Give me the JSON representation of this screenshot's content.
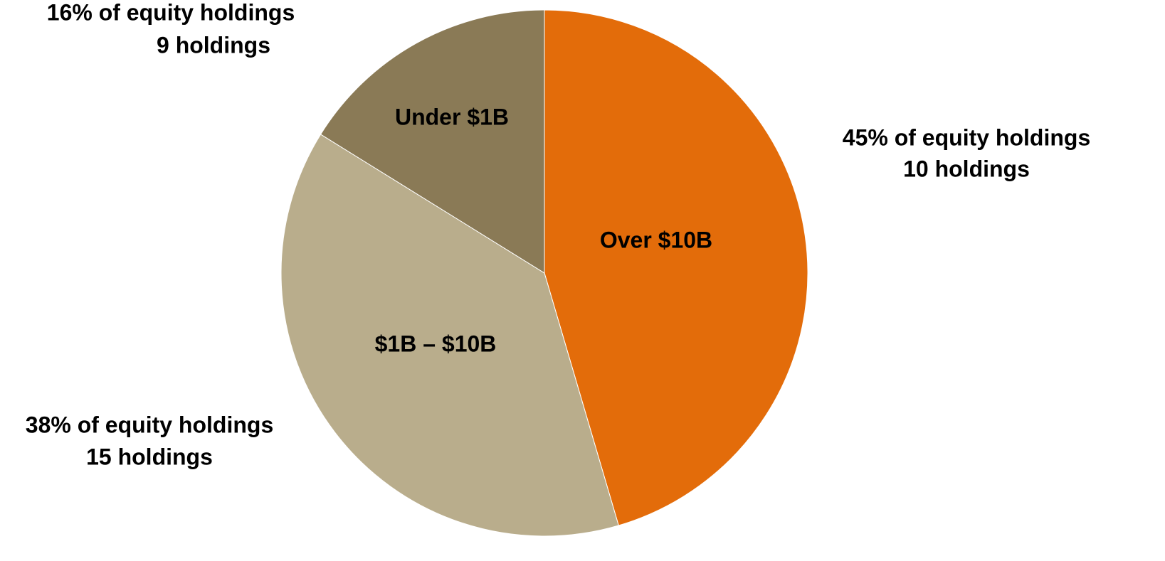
{
  "chart_data": {
    "type": "pie",
    "categories": [
      "Over $10B",
      "$1B – $10B",
      "Under $1B"
    ],
    "values": [
      45,
      38,
      16
    ],
    "value_labels": [
      "45% of equity holdings",
      "38% of equity holdings",
      "16% of equity holdings"
    ],
    "holdings_labels": [
      "10 holdings",
      "15 holdings",
      "9 holdings"
    ],
    "colors": [
      "#e36c0a",
      "#b9ad8c",
      "#8a7a56"
    ]
  }
}
